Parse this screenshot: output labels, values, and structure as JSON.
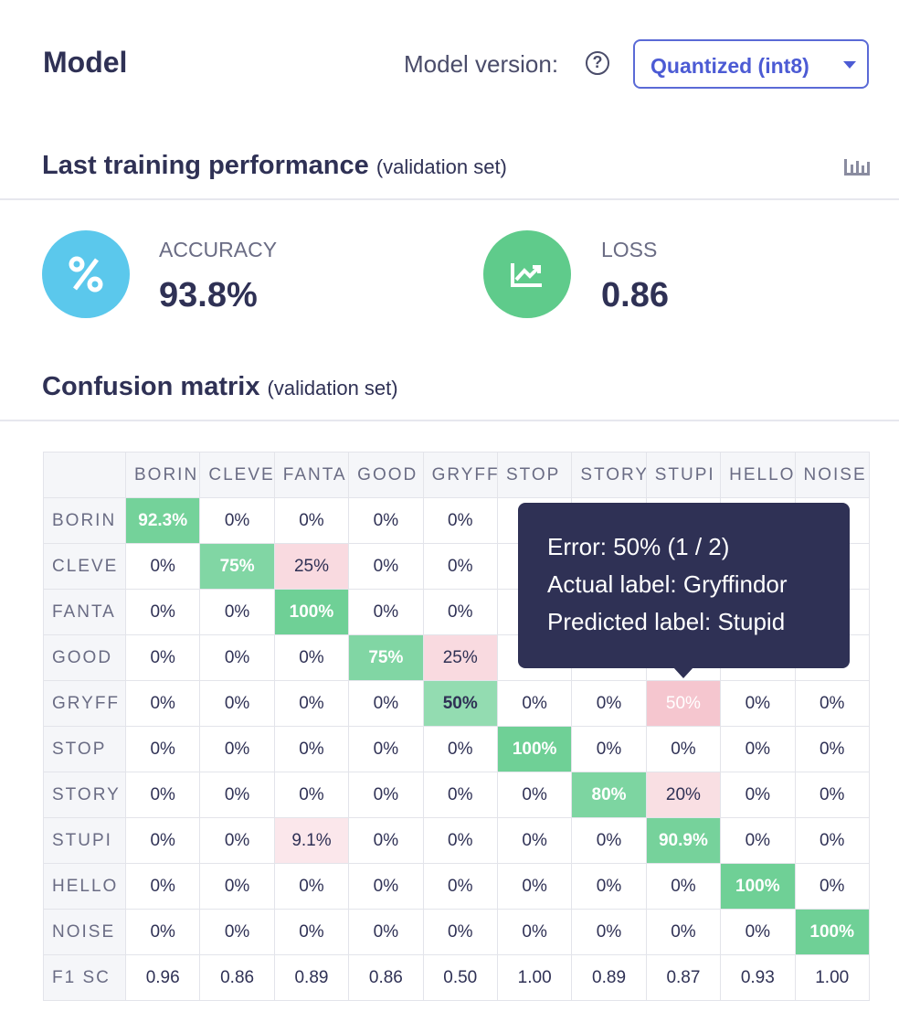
{
  "header": {
    "title": "Model",
    "version_label": "Model version:",
    "version_value": "Quantized (int8)"
  },
  "performance": {
    "title": "Last training performance",
    "subtitle": "(validation set)",
    "metrics": [
      {
        "label": "ACCURACY",
        "value": "93.8%"
      },
      {
        "label": "LOSS",
        "value": "0.86"
      }
    ]
  },
  "confusion": {
    "title": "Confusion matrix",
    "subtitle": "(validation set)",
    "columns": [
      "BORIN",
      "CLEVE",
      "FANTA",
      "GOOD",
      "GRYFF",
      "STOP",
      "STORY",
      "STUPI",
      "HELLO",
      "NOISE"
    ],
    "rows": [
      {
        "label": "BORIN",
        "cells": [
          "92.3%",
          "0%",
          "0%",
          "0%",
          "0%",
          null,
          null,
          null,
          null,
          null
        ]
      },
      {
        "label": "CLEVE",
        "cells": [
          "0%",
          "75%",
          "25%",
          "0%",
          "0%",
          null,
          null,
          null,
          null,
          null
        ]
      },
      {
        "label": "FANTA",
        "cells": [
          "0%",
          "0%",
          "100%",
          "0%",
          "0%",
          null,
          null,
          null,
          null,
          null
        ]
      },
      {
        "label": "GOOD",
        "cells": [
          "0%",
          "0%",
          "0%",
          "75%",
          "25%",
          null,
          null,
          null,
          null,
          null
        ]
      },
      {
        "label": "GRYFF",
        "cells": [
          "0%",
          "0%",
          "0%",
          "0%",
          "50%",
          "0%",
          "0%",
          "50%",
          "0%",
          "0%"
        ]
      },
      {
        "label": "STOP",
        "cells": [
          "0%",
          "0%",
          "0%",
          "0%",
          "0%",
          "100%",
          "0%",
          "0%",
          "0%",
          "0%"
        ]
      },
      {
        "label": "STORY",
        "cells": [
          "0%",
          "0%",
          "0%",
          "0%",
          "0%",
          "0%",
          "80%",
          "20%",
          "0%",
          "0%"
        ]
      },
      {
        "label": "STUPI",
        "cells": [
          "0%",
          "0%",
          "9.1%",
          "0%",
          "0%",
          "0%",
          "0%",
          "90.9%",
          "0%",
          "0%"
        ]
      },
      {
        "label": "HELLO",
        "cells": [
          "0%",
          "0%",
          "0%",
          "0%",
          "0%",
          "0%",
          "0%",
          "0%",
          "100%",
          "0%"
        ]
      },
      {
        "label": "NOISE",
        "cells": [
          "0%",
          "0%",
          "0%",
          "0%",
          "0%",
          "0%",
          "0%",
          "0%",
          "0%",
          "100%"
        ]
      }
    ],
    "f1": {
      "label": "F1 SC",
      "cells": [
        "0.96",
        "0.86",
        "0.89",
        "0.86",
        "0.50",
        "1.00",
        "0.89",
        "0.87",
        "0.93",
        "1.00"
      ]
    }
  },
  "tooltip": {
    "lines": [
      "Error: 50% (1 / 2)",
      "Actual label: Gryffindor",
      "Predicted label: Stupid"
    ]
  }
}
